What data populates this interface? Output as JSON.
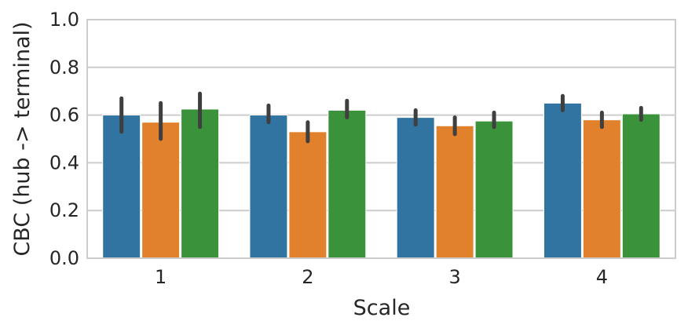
{
  "chart_data": {
    "type": "bar",
    "title": "",
    "xlabel": "Scale",
    "ylabel": "CBC (hub -> terminal)",
    "categories": [
      "1",
      "2",
      "3",
      "4"
    ],
    "ylim": [
      0,
      1.0
    ],
    "yticks": [
      0.0,
      0.2,
      0.4,
      0.6,
      0.8,
      1.0
    ],
    "ytick_labels": [
      "0.0",
      "0.2",
      "0.4",
      "0.6",
      "0.8",
      "1.0"
    ],
    "grid": "horizontal",
    "legend": "none",
    "series": [
      {
        "color": "#3274a1",
        "values": [
          0.6,
          0.6,
          0.59,
          0.65
        ],
        "err_low": [
          0.53,
          0.57,
          0.56,
          0.62
        ],
        "err_high": [
          0.67,
          0.64,
          0.62,
          0.68
        ]
      },
      {
        "color": "#e1812c",
        "values": [
          0.57,
          0.53,
          0.555,
          0.58
        ],
        "err_low": [
          0.5,
          0.49,
          0.52,
          0.55
        ],
        "err_high": [
          0.65,
          0.57,
          0.59,
          0.61
        ]
      },
      {
        "color": "#3a923a",
        "values": [
          0.625,
          0.62,
          0.575,
          0.605
        ],
        "err_low": [
          0.55,
          0.59,
          0.55,
          0.58
        ],
        "err_high": [
          0.69,
          0.66,
          0.61,
          0.63
        ]
      }
    ],
    "colors": {
      "grid": "#cccccc",
      "axis": "#cccccc",
      "errorbar": "#3f3f3f"
    }
  }
}
